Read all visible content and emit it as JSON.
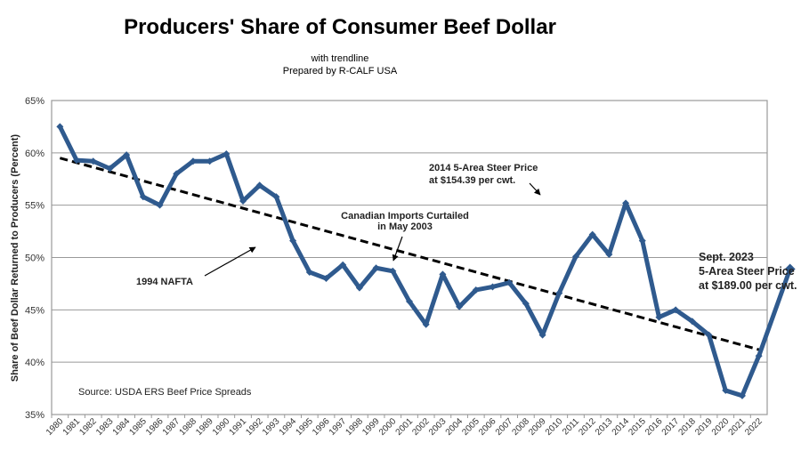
{
  "chart_data": {
    "type": "line",
    "title": "Producers' Share of Consumer Beef Dollar",
    "subtitle": [
      "with trendline",
      "Prepared by R-CALF USA"
    ],
    "xlabel": "",
    "ylabel": "Share of Beef Dollar Returned to Producers (Percent)",
    "ylim": [
      35,
      65
    ],
    "yticks": [
      "35%",
      "40%",
      "45%",
      "50%",
      "55%",
      "60%",
      "65%"
    ],
    "grid": true,
    "categories": [
      "1980",
      "1981",
      "1982",
      "1983",
      "1984",
      "1985",
      "1986",
      "1987",
      "1988",
      "1989",
      "1990",
      "1991",
      "1992",
      "1993",
      "1994",
      "1995",
      "1996",
      "1997",
      "1998",
      "1999",
      "2000",
      "2001",
      "2002",
      "2003",
      "2004",
      "2005",
      "2006",
      "2007",
      "2008",
      "2009",
      "2010",
      "2011",
      "2012",
      "2013",
      "2014",
      "2015",
      "2016",
      "2017",
      "2018",
      "2019",
      "2020",
      "2021",
      "2022"
    ],
    "series": [
      {
        "values": [
          62.5,
          59.3,
          59.2,
          58.5,
          59.8,
          55.8,
          55.0,
          58.0,
          59.2,
          59.2,
          59.9,
          55.4,
          56.9,
          55.8,
          51.6,
          48.6,
          48.0,
          49.3,
          47.1,
          49.0,
          48.7,
          45.8,
          43.6,
          48.4,
          45.3,
          46.9,
          47.2,
          47.6,
          45.6,
          42.6,
          46.6,
          50.1,
          52.2,
          50.3,
          55.2,
          51.6,
          44.3,
          45.0,
          43.9,
          42.6,
          37.3,
          36.8,
          40.6
        ],
        "extra_point": {
          "label": "Sept. 2023",
          "value": 48.9
        },
        "color": "#2f5a8e"
      }
    ],
    "trendline": {
      "start": {
        "x": "1980",
        "y": 59.5
      },
      "end": {
        "x": "2022",
        "y": 41.2
      },
      "style": "dashed",
      "color": "#000000"
    },
    "annotations": {
      "nafta": "1994 NAFTA",
      "canada": [
        "Canadian Imports Curtailed",
        "in May 2003"
      ],
      "steer2014": [
        "2014 5-Area Steer Price",
        "at $154.39 per cwt."
      ],
      "sept2023": [
        "Sept. 2023",
        "5-Area Steer Price",
        "at $189.00 per cwt."
      ],
      "source": "Source:  USDA ERS Beef Price Spreads"
    }
  }
}
